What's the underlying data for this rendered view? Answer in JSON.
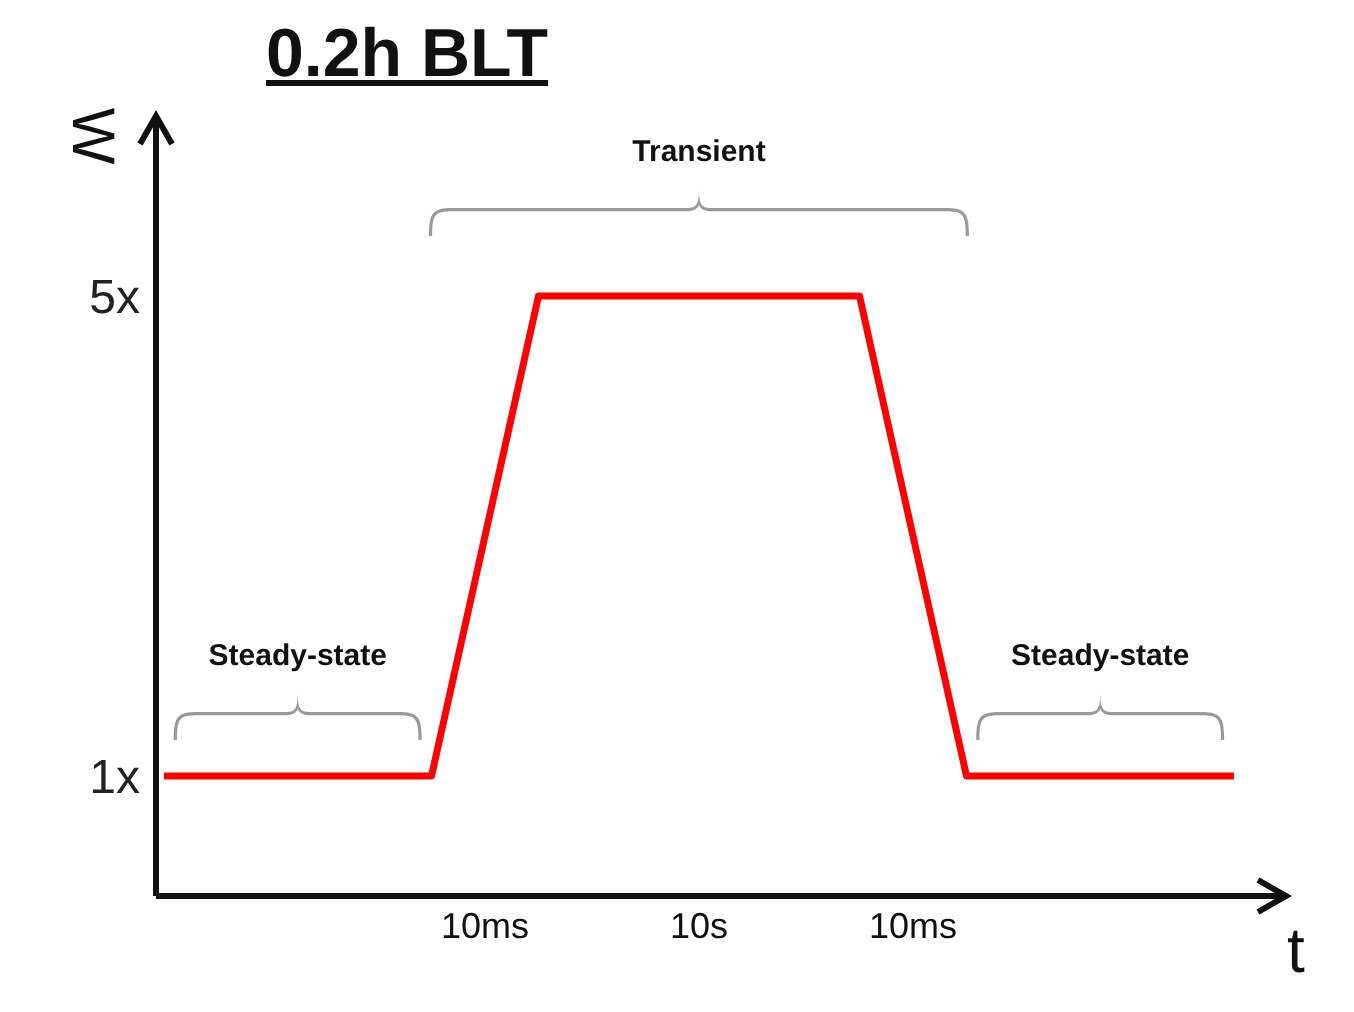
{
  "chart_data": {
    "type": "line",
    "title": "0.2h BLT",
    "xlabel": "t",
    "ylabel": "W",
    "categories": [
      null,
      null,
      null,
      null,
      null,
      null,
      "10ms",
      null,
      null,
      null,
      "10s",
      null,
      null,
      null,
      "10ms",
      null,
      null,
      null,
      null,
      null,
      null
    ],
    "series": [
      {
        "color": "#ff0000",
        "values": [
          1,
          1,
          1,
          1,
          1,
          1,
          3,
          5,
          5,
          5,
          5,
          5,
          5,
          5,
          3,
          1,
          1,
          1,
          1,
          1,
          1
        ]
      }
    ],
    "ylim": [
      0,
      6.5
    ],
    "yticks": [
      {
        "value": 1,
        "label": "1x"
      },
      {
        "value": 5,
        "label": "5x"
      }
    ],
    "grid": false,
    "legend": false,
    "marker": "none",
    "line_style": "solid",
    "annotations": [
      "Transient",
      "Steady-state",
      "Steady-state"
    ]
  }
}
